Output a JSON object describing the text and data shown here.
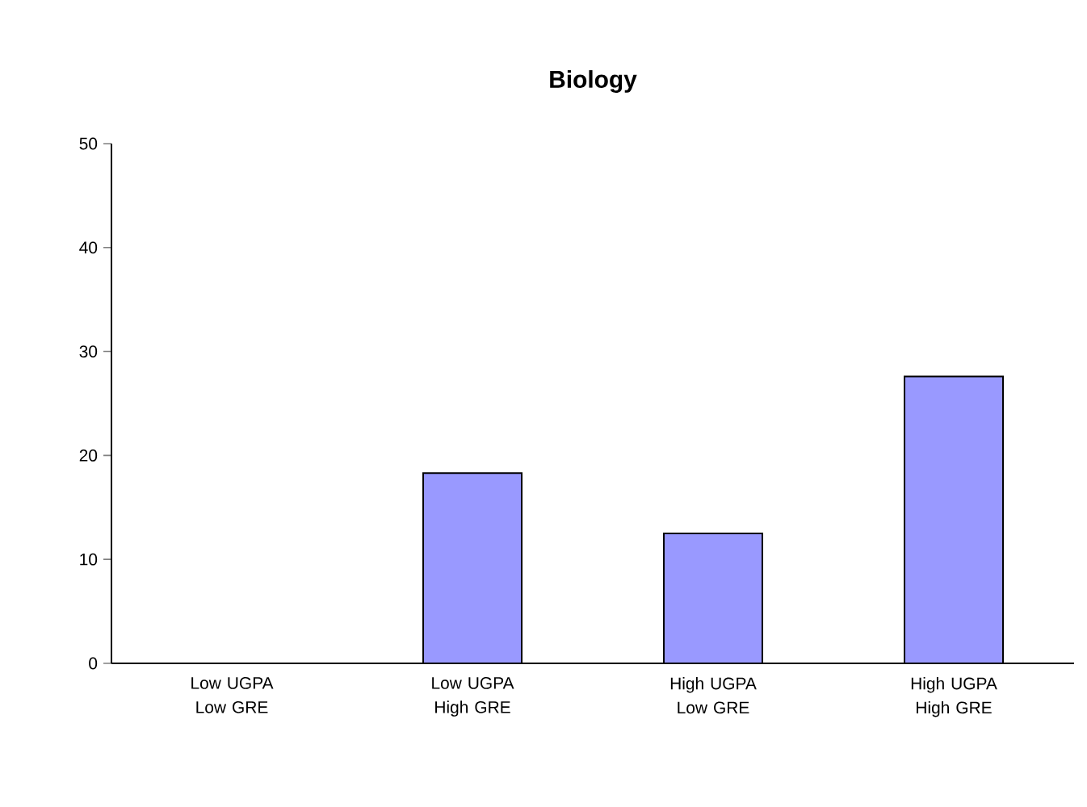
{
  "chart_data": {
    "type": "bar",
    "title": "Biology",
    "categories": [
      "Low UGPA Low GRE",
      "Low UGPA High GRE",
      "High UGPA Low GRE",
      "High UGPA High GRE"
    ],
    "values": [
      0,
      18.3,
      12.5,
      27.6
    ],
    "color": "#9999ff",
    "ylim": [
      0,
      50
    ],
    "yticks": [
      0,
      10,
      20,
      30,
      40,
      50
    ]
  }
}
